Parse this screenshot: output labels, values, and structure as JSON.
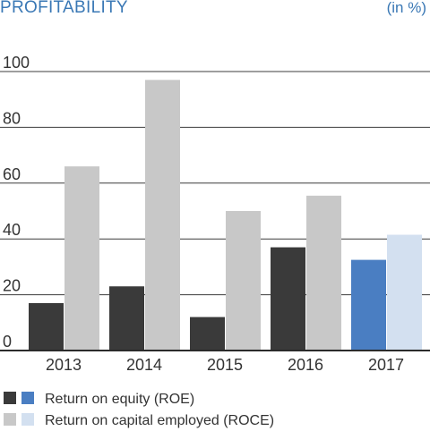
{
  "chart_data": {
    "type": "bar",
    "title": "PROFITABILITY",
    "unit_label": "(in %)",
    "categories": [
      "2013",
      "2014",
      "2015",
      "2016",
      "2017"
    ],
    "series": [
      {
        "name": "Return on equity (ROE)",
        "values": [
          17,
          23,
          12,
          37,
          32.5
        ]
      },
      {
        "name": "Return on capital employed (ROCE)",
        "values": [
          66,
          97,
          50,
          55.5,
          41.5
        ]
      }
    ],
    "ylim": [
      0,
      100
    ],
    "yticks": [
      0,
      20,
      40,
      60,
      80,
      100
    ],
    "grid": true,
    "legend_position": "bottom-left",
    "colors": {
      "roe": "#3a3a3a",
      "roce": "#c8c8c8",
      "roe_highlight": "#4a7ec2",
      "roce_highlight": "#d3e0f0",
      "title": "#3a78b5"
    },
    "highlight_category": "2017"
  }
}
